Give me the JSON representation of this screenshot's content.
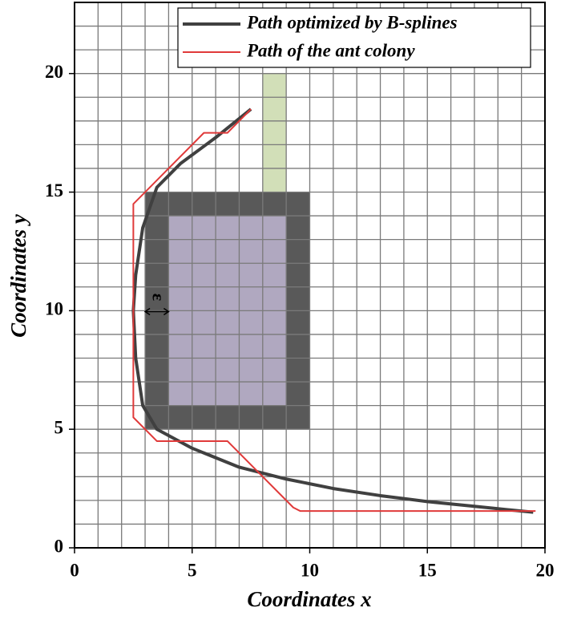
{
  "chart_data": {
    "type": "line",
    "xlabel": "Coordinates x",
    "ylabel": "Coordinates y",
    "xlim": [
      0,
      20
    ],
    "ylim": [
      0,
      23
    ],
    "xticks": [
      0,
      5,
      10,
      15,
      20
    ],
    "yticks": [
      0,
      5,
      10,
      15,
      20
    ],
    "grid": true,
    "grid_step": 1,
    "legend": "upper right",
    "series": [
      {
        "name": "Path optimized by B-splines",
        "color": "#404040",
        "x": [
          7.5,
          6,
          4.5,
          3.5,
          2.9,
          2.6,
          2.5,
          2.6,
          2.9,
          3.5,
          5,
          7,
          9,
          11,
          13,
          15,
          17,
          19.5
        ],
        "values": [
          18.5,
          17.3,
          16.2,
          15.2,
          13.5,
          11.5,
          10,
          8,
          6,
          5,
          4.2,
          3.4,
          2.9,
          2.5,
          2.2,
          1.95,
          1.75,
          1.5
        ]
      },
      {
        "name": "Path of the ant colony",
        "color": "#e03a3a",
        "x": [
          19.6,
          9.6,
          9.3,
          6.5,
          3.5,
          2.5,
          2.5,
          3,
          5.5,
          6.5,
          7.5
        ],
        "values": [
          1.55,
          1.55,
          1.7,
          4.5,
          4.5,
          5.5,
          14.5,
          15,
          17.5,
          17.5,
          18.5
        ]
      }
    ],
    "regions": [
      {
        "x": [
          3,
          10
        ],
        "y": [
          5,
          15
        ],
        "color": "#595959"
      },
      {
        "x": [
          4,
          9
        ],
        "y": [
          6,
          14
        ],
        "color": "#b0a8c0"
      },
      {
        "x": [
          8,
          9
        ],
        "y": [
          15,
          20
        ],
        "color": "#d2dfb8"
      }
    ],
    "annotation": {
      "text": "ε",
      "x": 3.5,
      "y": 10.3
    }
  }
}
